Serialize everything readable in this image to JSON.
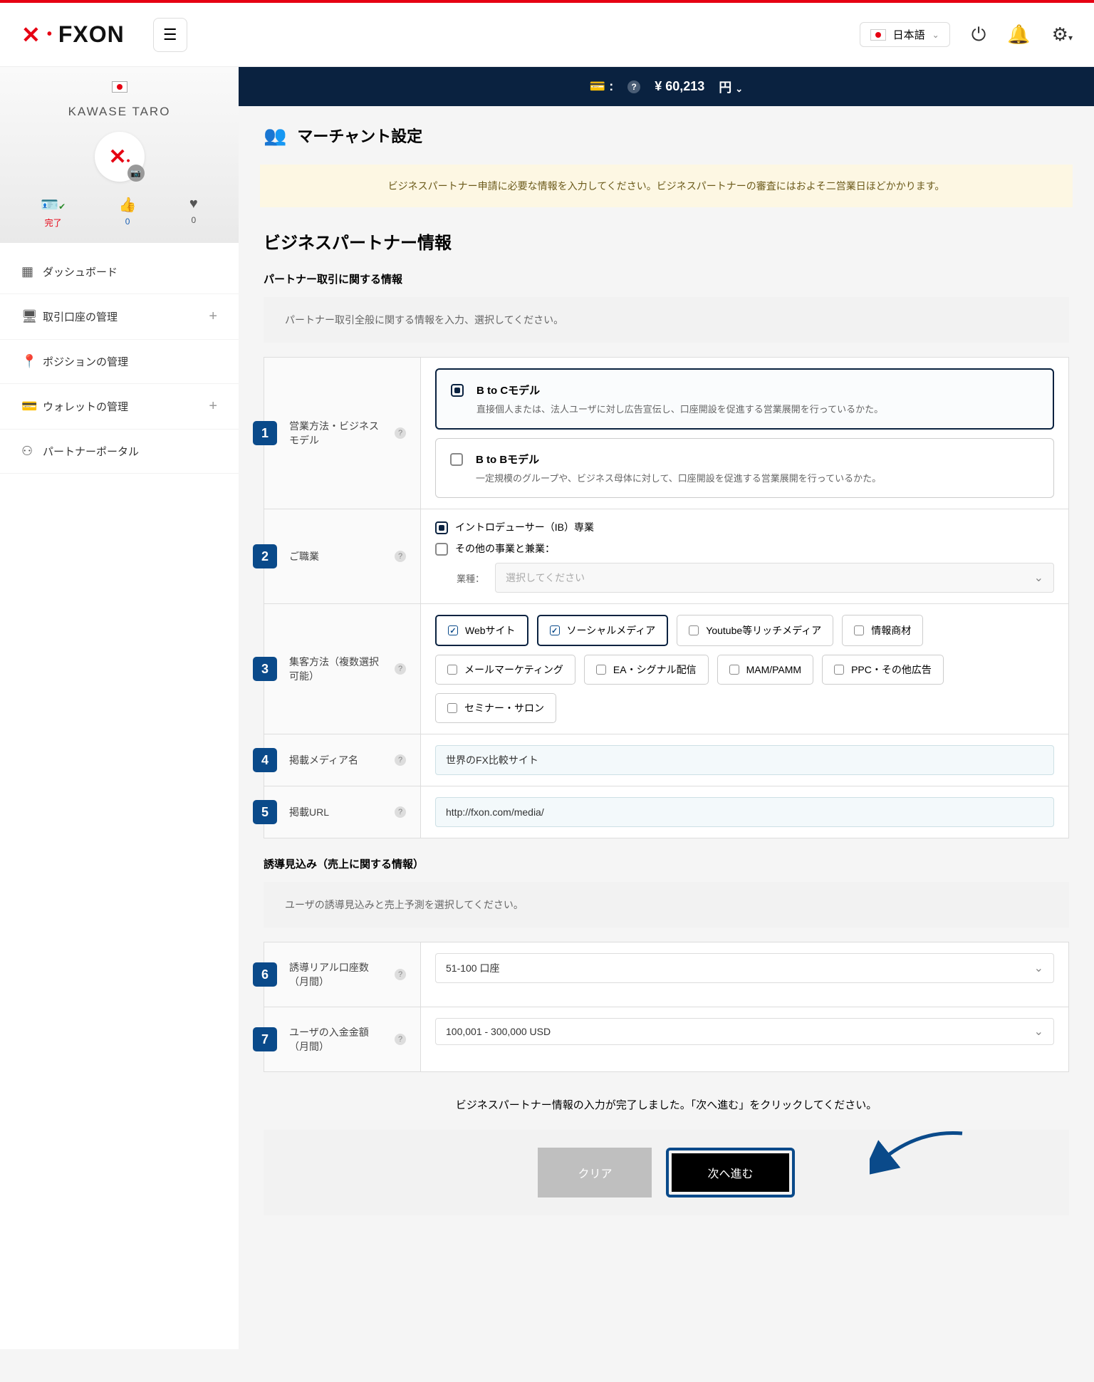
{
  "header": {
    "logo_text": "FXON",
    "language": "日本語"
  },
  "sidebar": {
    "user_name": "KAWASE TARO",
    "stats": {
      "complete_label": "完了",
      "thumb_count": "0",
      "heart_count": "0"
    },
    "nav": {
      "dashboard": "ダッシュボード",
      "accounts": "取引口座の管理",
      "positions": "ポジションの管理",
      "wallet": "ウォレットの管理",
      "partner": "パートナーポータル"
    }
  },
  "balance": {
    "amount": "¥ 60,213",
    "currency": "円"
  },
  "page": {
    "title": "マーチャント設定",
    "notice": "ビジネスパートナー申請に必要な情報を入力してください。ビジネスパートナーの審査にはおよそ二営業日ほどかかります。",
    "section1_title": "ビジネスパートナー情報",
    "sub1_title": "パートナー取引に関する情報",
    "sub1_info": "パートナー取引全般に関する情報を入力、選択してください。",
    "sub2_title": "誘導見込み（売上に関する情報）",
    "sub2_info": "ユーザの誘導見込みと売上予測を選択してください。",
    "completion_text": "ビジネスパートナー情報の入力が完了しました。「次へ進む」をクリックしてください。",
    "btn_clear": "クリア",
    "btn_next": "次へ進む"
  },
  "fields": {
    "f1": {
      "num": "1",
      "label": "営業方法・ビジネスモデル",
      "opt1_title": "B to Cモデル",
      "opt1_desc": "直接個人または、法人ユーザに対し広告宣伝し、口座開設を促進する営業展開を行っているかた。",
      "opt2_title": "B to Bモデル",
      "opt2_desc": "一定規模のグループや、ビジネス母体に対して、口座開設を促進する営業展開を行っているかた。"
    },
    "f2": {
      "num": "2",
      "label": "ご職業",
      "opt1": "イントロデューサー（IB）専業",
      "opt2": "その他の事業と兼業：",
      "industry_label": "業種：",
      "industry_placeholder": "選択してください"
    },
    "f3": {
      "num": "3",
      "label": "集客方法（複数選択可能）",
      "chips": [
        "Webサイト",
        "ソーシャルメディア",
        "Youtube等リッチメディア",
        "情報商材",
        "メールマーケティング",
        "EA・シグナル配信",
        "MAM/PAMM",
        "PPC・その他広告",
        "セミナー・サロン"
      ],
      "selected": [
        0,
        1
      ]
    },
    "f4": {
      "num": "4",
      "label": "掲載メディア名",
      "value": "世界のFX比較サイト"
    },
    "f5": {
      "num": "5",
      "label": "掲載URL",
      "value": "http://fxon.com/media/"
    },
    "f6": {
      "num": "6",
      "label": "誘導リアル口座数（月間）",
      "value": "51-100 口座"
    },
    "f7": {
      "num": "7",
      "label": "ユーザの入金金額（月間）",
      "value": "100,001 - 300,000 USD"
    }
  },
  "colors": {
    "accent_red": "#e60012",
    "navy": "#0a2240",
    "badge_blue": "#0a4a8a",
    "notice_bg": "#fdf7e3"
  }
}
